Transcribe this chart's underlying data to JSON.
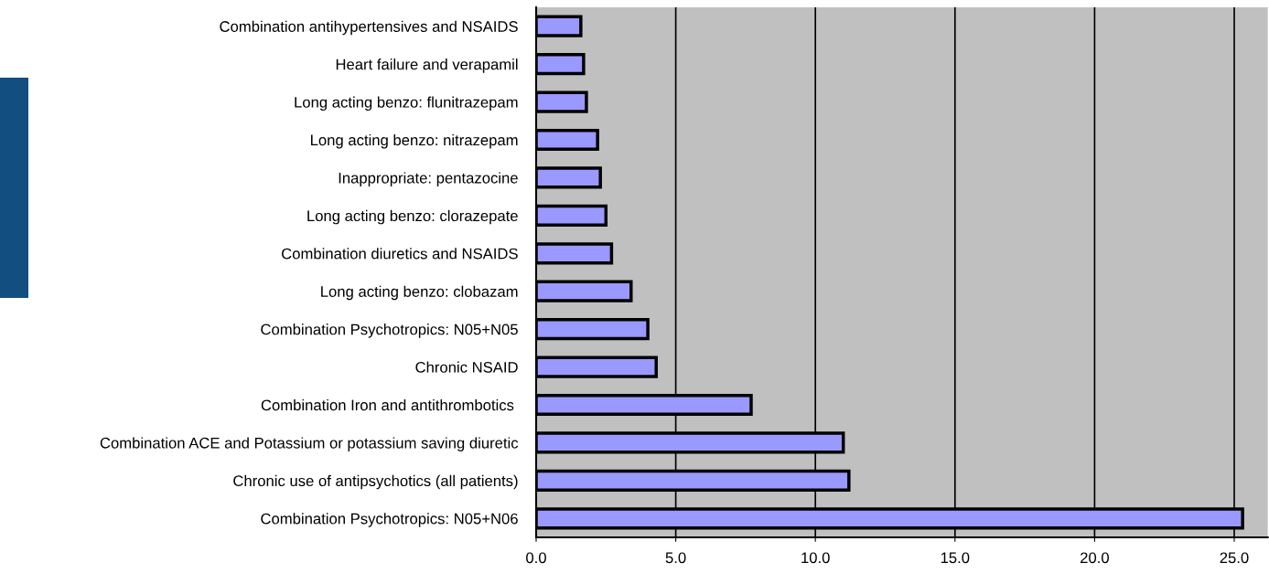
{
  "chart_data": {
    "type": "bar",
    "orientation": "horizontal",
    "categories": [
      "Combination antihypertensives and NSAIDS",
      "Heart failure and verapamil",
      "Long acting benzo: flunitrazepam",
      "Long acting benzo: nitrazepam",
      "Inappropriate: pentazocine",
      "Long acting benzo: clorazepate",
      "Combination diuretics and NSAIDS",
      "Long acting benzo: clobazam",
      "Combination Psychotropics: N05+N05",
      "Chronic NSAID",
      "Combination Iron and antithrombotics ",
      "Combination ACE and Potassium or potassium saving diuretic",
      "Chronic use of antipsychotics (all patients)",
      "Combination Psychotropics: N05+N06"
    ],
    "values": [
      1.6,
      1.7,
      1.8,
      2.2,
      2.3,
      2.5,
      2.7,
      3.4,
      4.0,
      4.3,
      7.7,
      11.0,
      11.2,
      25.3
    ],
    "color": "#9999ff",
    "xlim": [
      0,
      26.2
    ],
    "xticks": [
      {
        "value": 0,
        "label": "0.0"
      },
      {
        "value": 5,
        "label": "5.0"
      },
      {
        "value": 10,
        "label": "10.0"
      },
      {
        "value": 15,
        "label": "15.0"
      },
      {
        "value": 20,
        "label": "20.0"
      },
      {
        "value": 25,
        "label": "25.0"
      }
    ],
    "grid": "x"
  }
}
